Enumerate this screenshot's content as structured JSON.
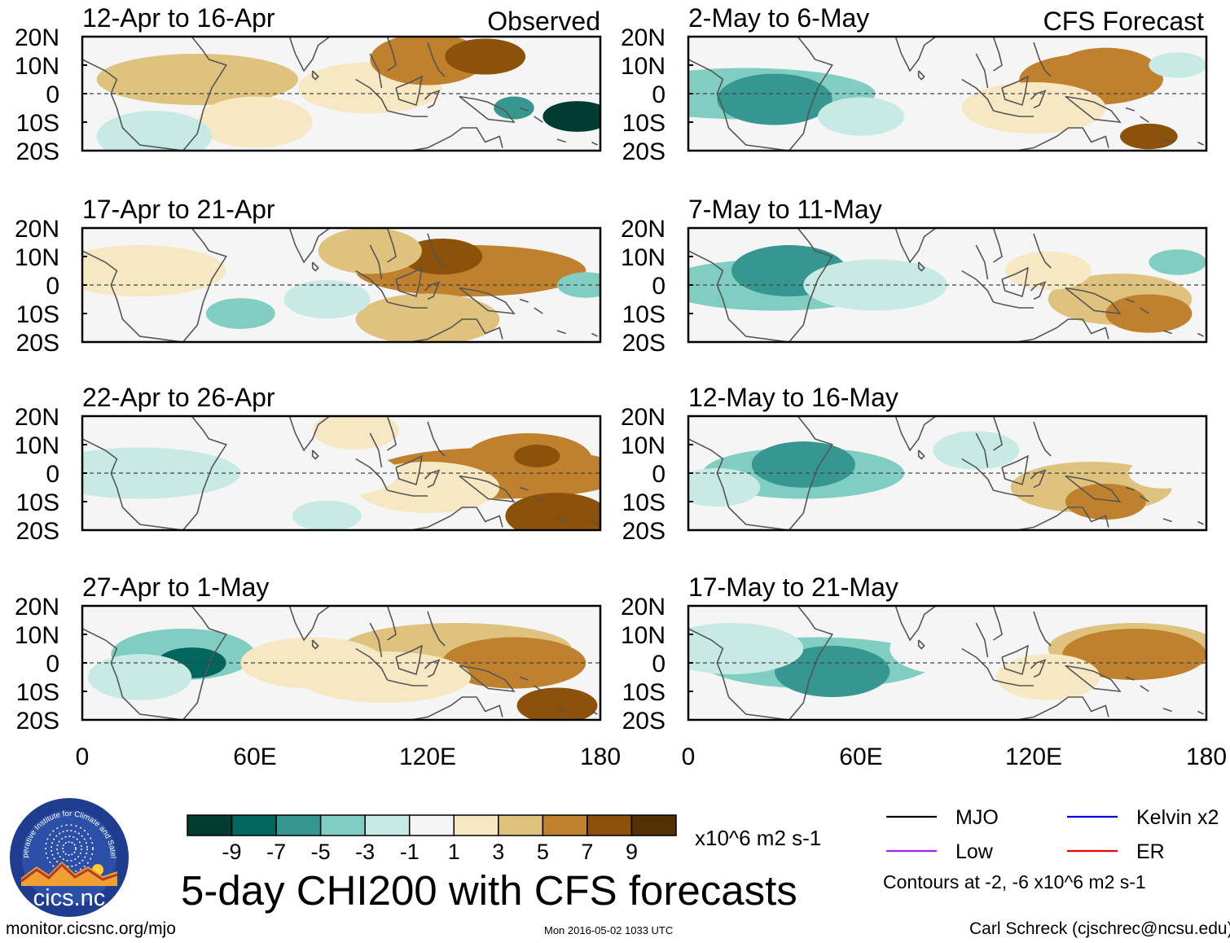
{
  "chart_data": {
    "type": "heatmap",
    "title": "5-day CHI200 with CFS forecasts",
    "variable": "CHI200 (200-hPa velocity potential) anomaly",
    "units": "x10^6 m2 s-1",
    "column_titles": [
      "Observed",
      "CFS Forecast"
    ],
    "x_axis": {
      "range": [
        0,
        180
      ],
      "ticks": [
        "0",
        "60E",
        "120E",
        "180"
      ]
    },
    "y_axis": {
      "range": [
        -20,
        20
      ],
      "ticks": [
        "20N",
        "10N",
        "0",
        "10S",
        "20S"
      ]
    },
    "colorbar": {
      "labels": [
        "-9",
        "-7",
        "-5",
        "-3",
        "-1",
        "1",
        "3",
        "5",
        "7",
        "9"
      ],
      "colors": [
        "#003c30",
        "#01665e",
        "#35978f",
        "#80cdc1",
        "#c7eae5",
        "#f5f5f5",
        "#f6e8c3",
        "#dfc27d",
        "#bf812d",
        "#8c510a",
        "#543005"
      ]
    },
    "legend": [
      {
        "name": "MJO",
        "color": "#000000"
      },
      {
        "name": "Kelvin x2",
        "color": "#0000dd"
      },
      {
        "name": "Low",
        "color": "#a020f0"
      },
      {
        "name": "ER",
        "color": "#ee0000"
      }
    ],
    "contour_note": "Contours at -2, -6 x10^6 m2 s-1",
    "panels": [
      {
        "label": "12-Apr to 16-Apr",
        "column": "Observed",
        "blobs": [
          [
            150,
            -5,
            7,
            -6
          ],
          [
            172,
            -8,
            12,
            -10
          ],
          [
            100,
            2,
            25,
            3
          ],
          [
            40,
            5,
            35,
            4
          ],
          [
            120,
            12,
            20,
            6
          ],
          [
            140,
            13,
            14,
            8
          ],
          [
            60,
            -10,
            20,
            2
          ],
          [
            25,
            -15,
            20,
            -2
          ]
        ]
      },
      {
        "label": "2-May to 6-May",
        "column": "CFS Forecast",
        "blobs": [
          [
            20,
            0,
            45,
            -4
          ],
          [
            30,
            -2,
            20,
            -5
          ],
          [
            60,
            -8,
            15,
            -2
          ],
          [
            140,
            5,
            25,
            6
          ],
          [
            145,
            8,
            18,
            7
          ],
          [
            160,
            -15,
            10,
            8
          ],
          [
            120,
            -5,
            25,
            3
          ],
          [
            170,
            10,
            10,
            -2
          ]
        ]
      },
      {
        "label": "17-Apr to 21-Apr",
        "column": "Observed",
        "blobs": [
          [
            135,
            5,
            40,
            6
          ],
          [
            130,
            5,
            28,
            7
          ],
          [
            125,
            10,
            14,
            8
          ],
          [
            120,
            -12,
            25,
            5
          ],
          [
            175,
            0,
            10,
            -4
          ],
          [
            55,
            -10,
            12,
            -3
          ],
          [
            85,
            -5,
            15,
            -1
          ],
          [
            20,
            5,
            30,
            2
          ],
          [
            100,
            12,
            18,
            4
          ]
        ]
      },
      {
        "label": "7-May to 11-May",
        "column": "CFS Forecast",
        "blobs": [
          [
            30,
            0,
            40,
            -4
          ],
          [
            35,
            5,
            20,
            -6
          ],
          [
            65,
            0,
            25,
            -2
          ],
          [
            150,
            -5,
            25,
            5
          ],
          [
            160,
            -10,
            15,
            6
          ],
          [
            170,
            8,
            10,
            -4
          ],
          [
            125,
            5,
            15,
            3
          ]
        ]
      },
      {
        "label": "22-Apr to 26-Apr",
        "column": "Observed",
        "blobs": [
          [
            145,
            0,
            45,
            6
          ],
          [
            155,
            5,
            22,
            7
          ],
          [
            158,
            6,
            8,
            9
          ],
          [
            165,
            -15,
            18,
            8
          ],
          [
            120,
            -5,
            25,
            3
          ],
          [
            80,
            0,
            30,
            1
          ],
          [
            95,
            15,
            15,
            3
          ],
          [
            20,
            0,
            35,
            -0.5
          ],
          [
            85,
            -15,
            12,
            -2
          ]
        ]
      },
      {
        "label": "12-May to 16-May",
        "column": "CFS Forecast",
        "blobs": [
          [
            40,
            0,
            35,
            -3
          ],
          [
            40,
            3,
            18,
            -5
          ],
          [
            10,
            -5,
            15,
            -2
          ],
          [
            140,
            -5,
            28,
            5
          ],
          [
            145,
            -10,
            14,
            6
          ],
          [
            100,
            8,
            15,
            -1
          ],
          [
            165,
            0,
            12,
            1
          ]
        ]
      },
      {
        "label": "27-Apr to 1-May",
        "column": "Observed",
        "blobs": [
          [
            35,
            3,
            25,
            -4
          ],
          [
            38,
            0,
            12,
            -7
          ],
          [
            20,
            -5,
            18,
            -2
          ],
          [
            130,
            5,
            40,
            5
          ],
          [
            150,
            0,
            25,
            6
          ],
          [
            165,
            -15,
            14,
            9
          ],
          [
            80,
            0,
            25,
            3
          ],
          [
            105,
            -5,
            30,
            2
          ]
        ]
      },
      {
        "label": "17-May to 21-May",
        "column": "CFS Forecast",
        "blobs": [
          [
            45,
            0,
            40,
            -3
          ],
          [
            50,
            -3,
            20,
            -5
          ],
          [
            15,
            5,
            25,
            -2
          ],
          [
            155,
            5,
            30,
            5
          ],
          [
            155,
            3,
            25,
            6
          ],
          [
            125,
            -5,
            18,
            3
          ],
          [
            90,
            5,
            20,
            1
          ]
        ]
      }
    ]
  },
  "colorbar_units": "x10^6 m2 s-1",
  "logo": {
    "arc_text": "Cooperative Institute for Climate and Satellites",
    "name": "cics.nc"
  },
  "footer": {
    "url": "monitor.cicsnc.org/mjo",
    "timestamp": "Mon 2016-05-02 1033 UTC",
    "credit": "Carl Schreck (cjschrec@ncsu.edu)"
  }
}
